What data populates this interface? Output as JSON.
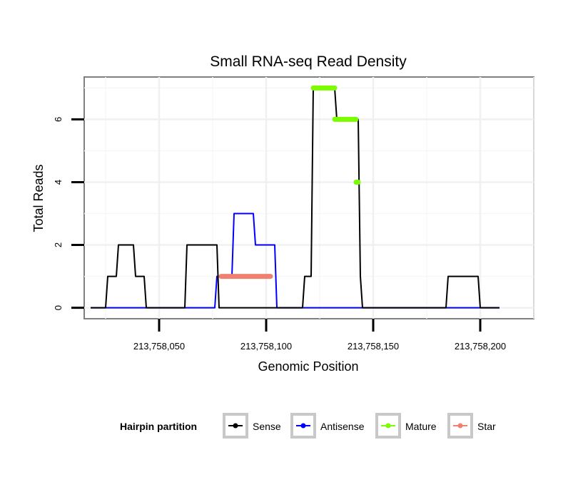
{
  "chart_data": {
    "type": "line",
    "title": "Small RNA-seq Read Density",
    "xlabel": "Genomic Position",
    "ylabel": "Total Reads",
    "xlim": [
      213758015,
      213758225
    ],
    "ylim": [
      -0.35,
      7.35
    ],
    "x_ticks": [
      213758050,
      213758100,
      213758150,
      213758200
    ],
    "x_tick_labels": [
      "213,758,050",
      "213,758,100",
      "213,758,150",
      "213,758,200"
    ],
    "y_ticks": [
      0,
      2,
      4,
      6
    ],
    "y_tick_labels": [
      "0",
      "2",
      "4",
      "6"
    ],
    "grid": true,
    "legend": {
      "title": "Hairpin partition",
      "position": "bottom",
      "entries": [
        {
          "name": "Sense",
          "color": "#000000"
        },
        {
          "name": "Antisense",
          "color": "#0000ff"
        },
        {
          "name": "Mature",
          "color": "#7cfc00"
        },
        {
          "name": "Star",
          "color": "#f08070"
        }
      ]
    },
    "series": [
      {
        "name": "Sense",
        "color": "#000000",
        "style": "line",
        "points": [
          [
            213758018,
            0
          ],
          [
            213758025,
            0
          ],
          [
            213758026,
            1
          ],
          [
            213758030,
            1
          ],
          [
            213758031,
            2
          ],
          [
            213758038,
            2
          ],
          [
            213758039,
            1
          ],
          [
            213758043,
            1
          ],
          [
            213758044,
            0
          ],
          [
            213758062,
            0
          ],
          [
            213758063,
            2
          ],
          [
            213758077,
            2
          ],
          [
            213758078,
            0
          ],
          [
            213758103,
            0
          ],
          [
            213758104,
            0
          ],
          [
            213758117,
            0
          ],
          [
            213758118,
            1
          ],
          [
            213758121,
            1
          ],
          [
            213758122,
            7
          ],
          [
            213758132,
            7
          ],
          [
            213758133,
            6
          ],
          [
            213758143,
            6
          ],
          [
            213758144,
            1
          ],
          [
            213758145,
            0
          ],
          [
            213758184,
            0
          ],
          [
            213758185,
            1
          ],
          [
            213758199,
            1
          ],
          [
            213758200,
            0
          ],
          [
            213758209,
            0
          ]
        ]
      },
      {
        "name": "Antisense",
        "color": "#0000ff",
        "style": "line",
        "points": [
          [
            213758018,
            0
          ],
          [
            213758076,
            0
          ],
          [
            213758077,
            1
          ],
          [
            213758078,
            1
          ],
          [
            213758079,
            1
          ],
          [
            213758084,
            1
          ],
          [
            213758085,
            3
          ],
          [
            213758094,
            3
          ],
          [
            213758095,
            2
          ],
          [
            213758104,
            2
          ],
          [
            213758105,
            0
          ],
          [
            213758209,
            0
          ]
        ]
      },
      {
        "name": "Mature",
        "color": "#7cfc00",
        "style": "segment",
        "segments": [
          [
            213758122,
            213758132,
            7
          ],
          [
            213758132,
            213758142,
            6
          ],
          [
            213758142,
            213758143,
            4
          ]
        ]
      },
      {
        "name": "Star",
        "color": "#f08070",
        "style": "segment",
        "segments": [
          [
            213758079,
            213758102,
            1
          ]
        ]
      }
    ]
  }
}
